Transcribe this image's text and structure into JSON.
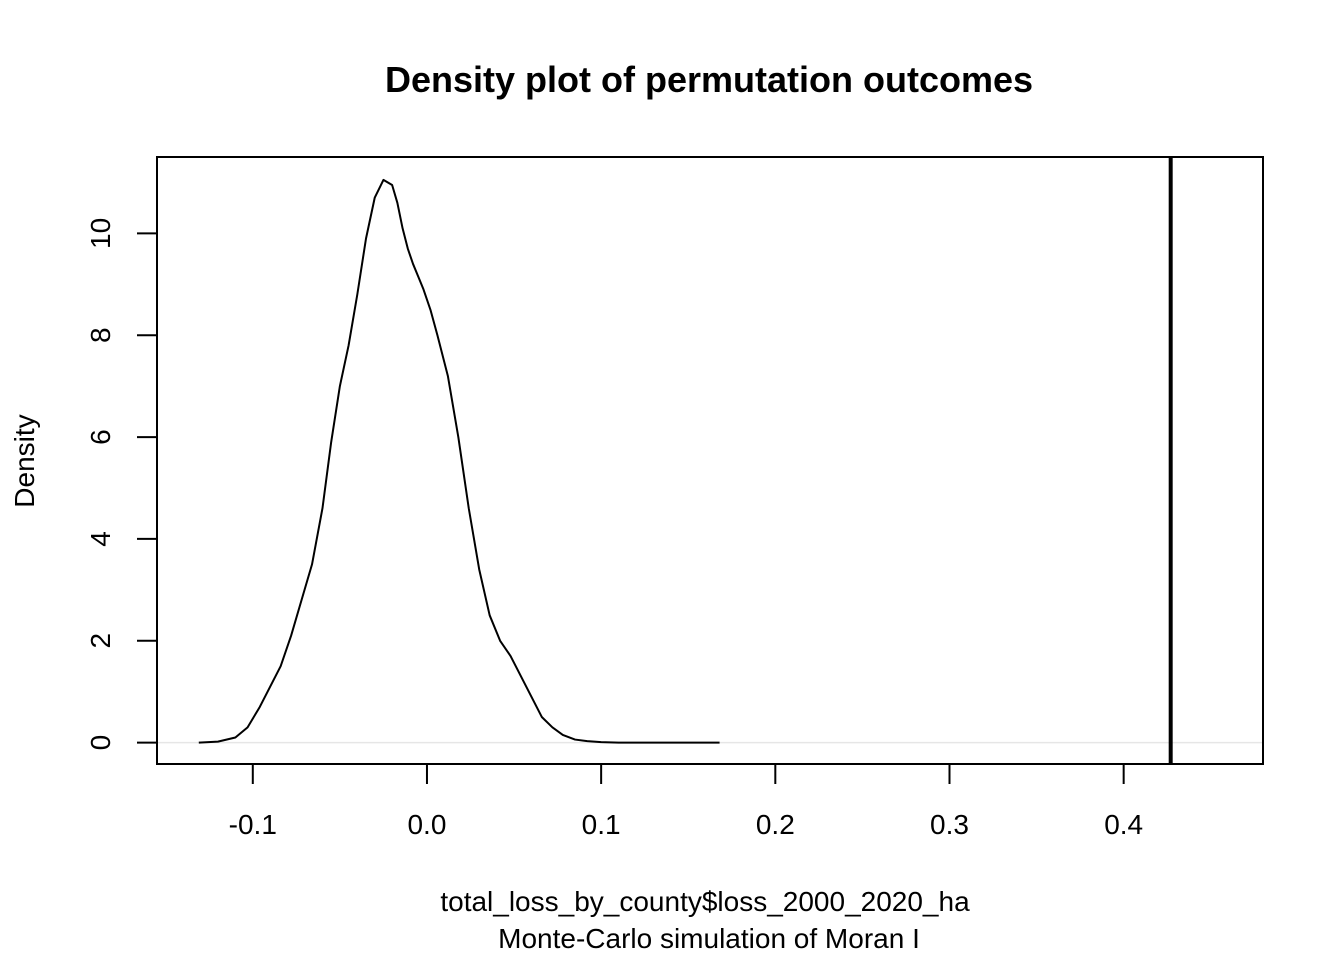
{
  "chart_data": {
    "type": "line",
    "title": "Density plot of permutation outcomes",
    "xlabel": "total_loss_by_county$loss_2000_2020_ha",
    "sub": "Monte-Carlo simulation of Moran I",
    "ylabel": "Density",
    "xlim": [
      -0.155,
      0.48
    ],
    "ylim": [
      -0.42,
      11.5
    ],
    "x_ticks": [
      -0.1,
      0.0,
      0.1,
      0.2,
      0.3,
      0.4
    ],
    "x_tick_labels": [
      "-0.1",
      "0.0",
      "0.1",
      "0.2",
      "0.3",
      "0.4"
    ],
    "y_ticks": [
      0,
      2,
      4,
      6,
      8,
      10
    ],
    "y_tick_labels": [
      "0",
      "2",
      "4",
      "6",
      "8",
      "10"
    ],
    "grid": false,
    "baseline": 0,
    "observed_value": 0.427,
    "series": [
      {
        "x": [
          -0.131,
          -0.12,
          -0.11,
          -0.103,
          -0.096,
          -0.09,
          -0.084,
          -0.078,
          -0.072,
          -0.066,
          -0.06,
          -0.055,
          -0.05,
          -0.045,
          -0.04,
          -0.035,
          -0.03,
          -0.025,
          -0.02,
          -0.017,
          -0.014,
          -0.011,
          -0.008,
          -0.005,
          -0.002,
          0.002,
          0.006,
          0.012,
          0.018,
          0.024,
          0.03,
          0.036,
          0.042,
          0.048,
          0.054,
          0.06,
          0.066,
          0.072,
          0.078,
          0.085,
          0.092,
          0.1,
          0.11,
          0.12,
          0.13,
          0.14,
          0.15,
          0.16,
          0.168
        ],
        "y": [
          0.0,
          0.02,
          0.1,
          0.3,
          0.7,
          1.1,
          1.5,
          2.1,
          2.8,
          3.5,
          4.6,
          5.9,
          7.0,
          7.8,
          8.8,
          9.9,
          10.7,
          11.05,
          10.95,
          10.6,
          10.1,
          9.7,
          9.4,
          9.15,
          8.9,
          8.5,
          8.0,
          7.2,
          6.0,
          4.6,
          3.4,
          2.5,
          2.0,
          1.7,
          1.3,
          0.9,
          0.5,
          0.3,
          0.15,
          0.06,
          0.03,
          0.01,
          0.0,
          0.0,
          0.0,
          0.0,
          0.0,
          0.0,
          0.0
        ]
      }
    ]
  }
}
